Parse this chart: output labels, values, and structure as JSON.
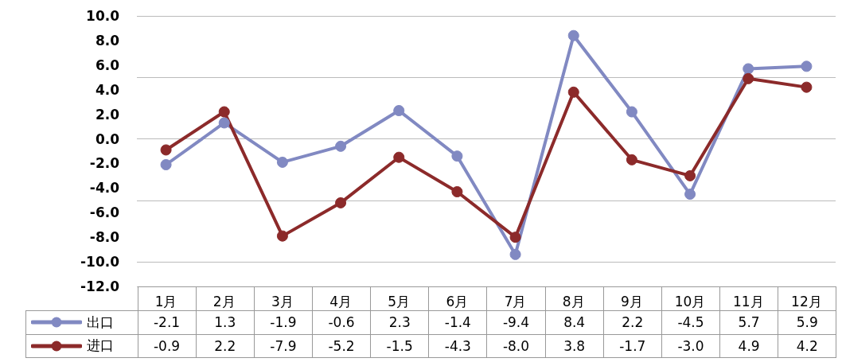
{
  "chart_data": {
    "type": "line",
    "categories": [
      "1月",
      "2月",
      "3月",
      "4月",
      "5月",
      "6月",
      "7月",
      "8月",
      "9月",
      "10月",
      "11月",
      "12月"
    ],
    "series": [
      {
        "name": "出口",
        "color": "#8189c2",
        "values": [
          -2.1,
          1.3,
          -1.9,
          -0.6,
          2.3,
          -1.4,
          -9.4,
          8.4,
          2.2,
          -4.5,
          5.7,
          5.9
        ],
        "value_labels": [
          "-2.1",
          "1.3",
          "-1.9",
          "-0.6",
          "2.3",
          "-1.4",
          "-9.4",
          "8.4",
          "2.2",
          "-4.5",
          "5.7",
          "5.9"
        ]
      },
      {
        "name": "进口",
        "color": "#8c2a2a",
        "values": [
          -0.9,
          2.2,
          -7.9,
          -5.2,
          -1.5,
          -4.3,
          -8.0,
          3.8,
          -1.7,
          -3.0,
          4.9,
          4.2
        ],
        "value_labels": [
          "-0.9",
          "2.2",
          "-7.9",
          "-5.2",
          "-1.5",
          "-4.3",
          "-8.0",
          "3.8",
          "-1.7",
          "-3.0",
          "4.9",
          "4.2"
        ]
      }
    ],
    "ylim": [
      -12,
      10
    ],
    "yticks": [
      {
        "value": -12,
        "label": "-12.0"
      },
      {
        "value": -10,
        "label": "-10.0"
      },
      {
        "value": -8,
        "label": "-8.0"
      },
      {
        "value": -6,
        "label": "-6.0"
      },
      {
        "value": -4,
        "label": "-4.0"
      },
      {
        "value": -2,
        "label": "-2.0"
      },
      {
        "value": 0,
        "label": "0.0"
      },
      {
        "value": 2,
        "label": "2.0"
      },
      {
        "value": 4,
        "label": "4.0"
      },
      {
        "value": 6,
        "label": "6.0"
      },
      {
        "value": 8,
        "label": "8.0"
      },
      {
        "value": 10,
        "label": "10.0"
      }
    ],
    "grid": "y",
    "legend": "bottom",
    "marker": "circle",
    "line_style": "solid"
  }
}
